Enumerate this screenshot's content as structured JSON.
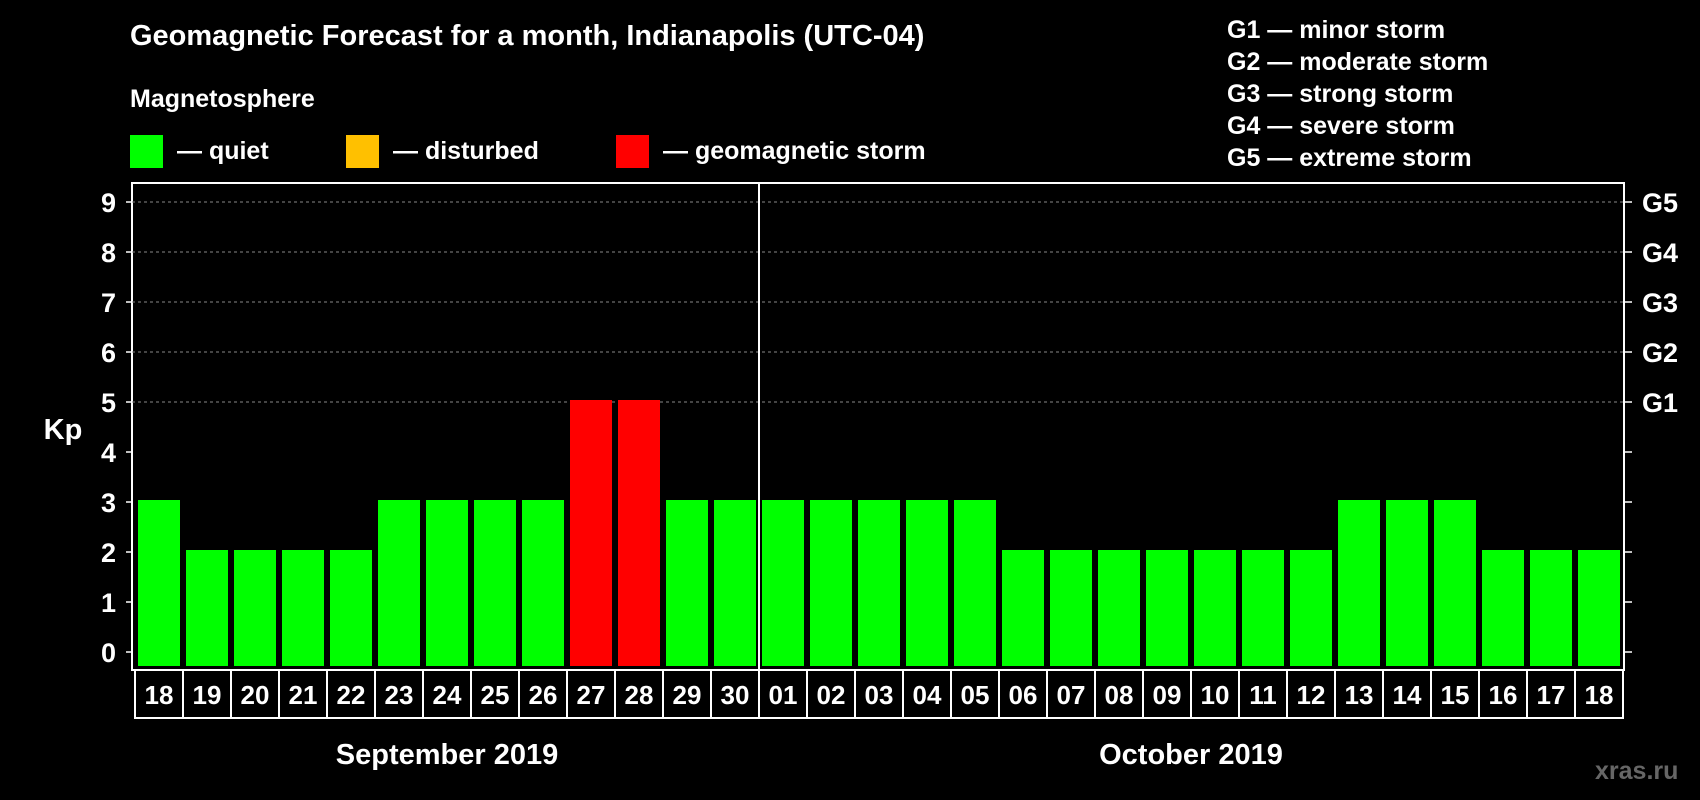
{
  "title": "Geomagnetic Forecast for a month, Indianapolis (UTC-04)",
  "legend": {
    "heading": "Magnetosphere",
    "items": [
      {
        "label": "— quiet",
        "color": "#00ff00"
      },
      {
        "label": "— disturbed",
        "color": "#ffc000"
      },
      {
        "label": "— geomagnetic storm",
        "color": "#ff0000"
      }
    ]
  },
  "storm_scale": [
    "G1 — minor storm",
    "G2 — moderate storm",
    "G3 — strong storm",
    "G4 — severe storm",
    "G5 — extreme storm"
  ],
  "watermark": "xras.ru",
  "chart_data": {
    "type": "bar",
    "title": "Geomagnetic Forecast for a month, Indianapolis (UTC-04)",
    "ylabel": "Kp",
    "ylim": [
      0,
      9
    ],
    "yticks": [
      "0",
      "1",
      "2",
      "3",
      "4",
      "5",
      "6",
      "7",
      "8",
      "9"
    ],
    "right_ticks": [
      {
        "kp": 5,
        "label": "G1"
      },
      {
        "kp": 6,
        "label": "G2"
      },
      {
        "kp": 7,
        "label": "G3"
      },
      {
        "kp": 8,
        "label": "G4"
      },
      {
        "kp": 9,
        "label": "G5"
      }
    ],
    "grid": "dashed at Kp 5-9",
    "categories": [
      "18",
      "19",
      "20",
      "21",
      "22",
      "23",
      "24",
      "25",
      "26",
      "27",
      "28",
      "29",
      "30",
      "01",
      "02",
      "03",
      "04",
      "05",
      "06",
      "07",
      "08",
      "09",
      "10",
      "11",
      "12",
      "13",
      "14",
      "15",
      "16",
      "17",
      "18"
    ],
    "values": [
      3,
      2,
      2,
      2,
      2,
      3,
      3,
      3,
      3,
      5,
      5,
      3,
      3,
      3,
      3,
      3,
      3,
      3,
      2,
      2,
      2,
      2,
      2,
      2,
      2,
      3,
      3,
      3,
      2,
      2,
      2
    ],
    "months": [
      {
        "label": "September 2019",
        "start": 0,
        "end": 12
      },
      {
        "label": "October 2019",
        "start": 13,
        "end": 30
      }
    ],
    "colors": {
      "quiet": "#00ff00",
      "disturbed": "#ffc000",
      "storm": "#ff0000"
    }
  }
}
